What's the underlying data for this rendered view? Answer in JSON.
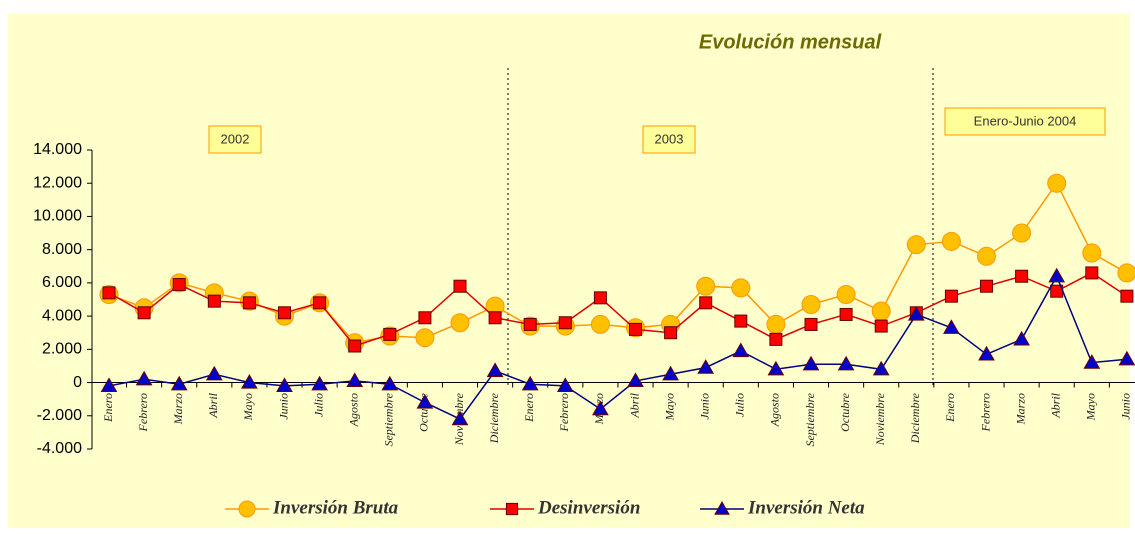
{
  "chart_data": {
    "type": "line",
    "title": "Evolución mensual",
    "annotations": [
      "2002",
      "2003",
      "Enero-Junio 2004"
    ],
    "categories": [
      "Enero",
      "Febrero",
      "Marzo",
      "Abril",
      "Mayo",
      "Junio",
      "Julio",
      "Agosto",
      "Septiembre",
      "Octubre",
      "Noviembre",
      "Diciembre",
      "Enero",
      "Febrero",
      "Marzo",
      "Abril",
      "Mayo",
      "Junio",
      "Julio",
      "Agosto",
      "Septiembre",
      "Octubre",
      "Noviembre",
      "Diciembre",
      "Enero",
      "Febrero",
      "Marzo",
      "Abril",
      "Mayo",
      "Junio"
    ],
    "series": [
      {
        "name": "Inversión Bruta",
        "color": "#ffc000",
        "line_color": "#ff9900",
        "marker": "circle",
        "values": [
          5300,
          4500,
          6000,
          5400,
          4900,
          4000,
          4800,
          2400,
          2800,
          2700,
          3600,
          4600,
          3400,
          3400,
          3500,
          3300,
          3500,
          5800,
          5700,
          3500,
          4700,
          5300,
          4300,
          8300,
          8500,
          7600,
          9000,
          12000,
          7800,
          6600
        ]
      },
      {
        "name": "Desinversión",
        "color": "#ff0000",
        "line_color": "#dd0000",
        "marker": "square",
        "values": [
          5400,
          4200,
          5900,
          4900,
          4800,
          4200,
          4800,
          2200,
          2900,
          3900,
          5800,
          3900,
          3500,
          3600,
          5100,
          3200,
          3000,
          4800,
          3700,
          2600,
          3500,
          4100,
          3400,
          4200,
          5200,
          5800,
          6400,
          5500,
          6600,
          5200
        ]
      },
      {
        "name": "Inversión Neta",
        "color": "#0000cc",
        "line_color": "#000080",
        "marker": "triangle",
        "values": [
          -200,
          200,
          -100,
          500,
          0,
          -200,
          -100,
          100,
          -100,
          -1200,
          -2200,
          700,
          -100,
          -200,
          -1600,
          100,
          500,
          900,
          1900,
          800,
          1100,
          1100,
          800,
          4100,
          3300,
          1700,
          2600,
          6400,
          1200,
          1400
        ]
      }
    ],
    "ylim": [
      -4000,
      14000
    ],
    "yticks": [
      {
        "value": -4000,
        "label": "-4.000"
      },
      {
        "value": -2000,
        "label": "-2.000"
      },
      0,
      {
        "value": 2000,
        "label": "2.000"
      },
      {
        "value": 4000,
        "label": "4.000"
      },
      {
        "value": 6000,
        "label": "6.000"
      },
      {
        "value": 8000,
        "label": "8.000"
      },
      {
        "value": 10000,
        "label": "10.000"
      },
      {
        "value": 12000,
        "label": "12.000"
      },
      {
        "value": 14000,
        "label": "14.000"
      }
    ],
    "legend": "bottom"
  }
}
